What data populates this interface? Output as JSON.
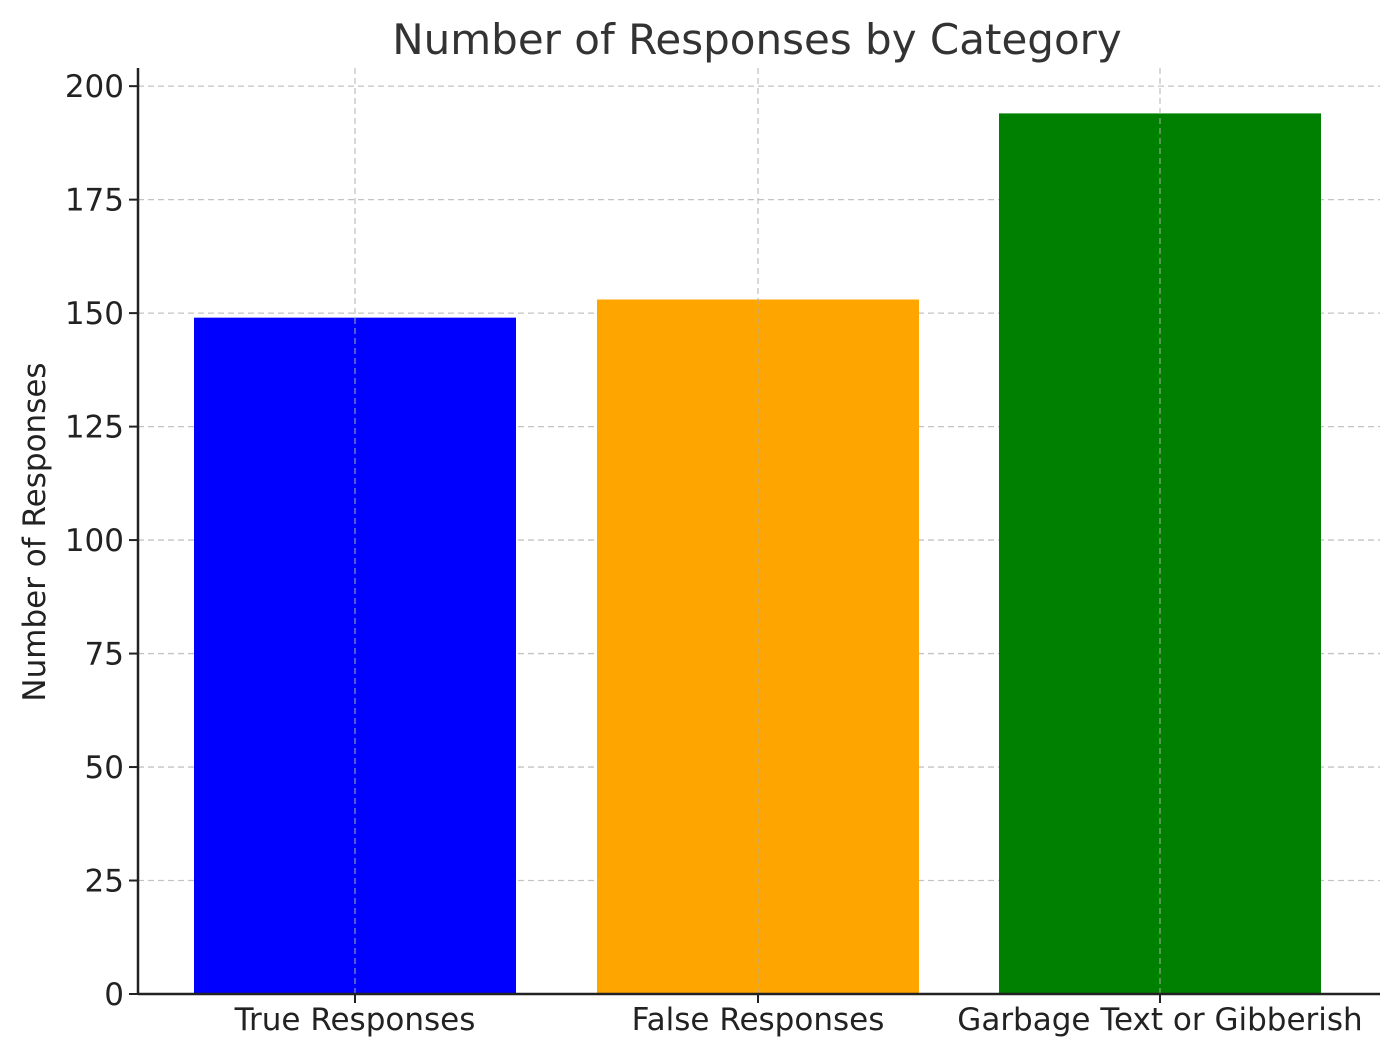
{
  "chart_data": {
    "type": "bar",
    "title": "Number of Responses by Category",
    "xlabel": "",
    "ylabel": "Number of Responses",
    "categories": [
      "True Responses",
      "False Responses",
      "Garbage Text or Gibberish"
    ],
    "values": [
      149,
      153,
      194
    ],
    "colors": [
      "#0000ff",
      "#ffa500",
      "#008000"
    ],
    "ylim": [
      0,
      204
    ],
    "yticks": [
      0,
      25,
      50,
      75,
      100,
      125,
      150,
      175,
      200
    ],
    "grid": true,
    "legend": "none"
  }
}
